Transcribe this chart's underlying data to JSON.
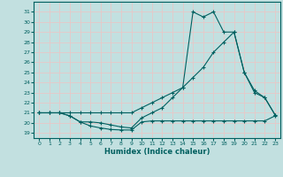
{
  "xlabel": "Humidex (Indice chaleur)",
  "bg_color": "#c2e0e0",
  "grid_color": "#e8c8c8",
  "line_color": "#006060",
  "x_ticks": [
    0,
    1,
    2,
    3,
    4,
    5,
    6,
    7,
    8,
    9,
    10,
    11,
    12,
    13,
    14,
    15,
    16,
    17,
    18,
    19,
    20,
    21,
    22,
    23
  ],
  "y_ticks": [
    19,
    20,
    21,
    22,
    23,
    24,
    25,
    26,
    27,
    28,
    29,
    30,
    31
  ],
  "ylim": [
    18.5,
    32.0
  ],
  "xlim": [
    -0.5,
    23.5
  ],
  "line1_x": [
    0,
    1,
    2,
    3,
    4,
    5,
    6,
    7,
    8,
    9,
    10,
    11,
    12,
    13,
    14,
    15,
    16,
    17,
    18,
    19,
    20,
    21,
    22,
    23
  ],
  "line1_y": [
    21,
    21,
    21,
    20.7,
    20.1,
    19.7,
    19.5,
    19.35,
    19.3,
    19.3,
    20.1,
    20.2,
    20.2,
    20.2,
    20.2,
    20.2,
    20.2,
    20.2,
    20.2,
    20.2,
    20.2,
    20.2,
    20.2,
    20.7
  ],
  "line2_x": [
    0,
    1,
    2,
    3,
    4,
    5,
    6,
    7,
    8,
    9,
    10,
    11,
    12,
    13,
    14,
    15,
    16,
    17,
    18,
    19,
    20,
    21,
    22,
    23
  ],
  "line2_y": [
    21,
    21,
    21,
    21,
    21,
    21,
    21,
    21,
    21,
    21,
    21.5,
    22,
    22.5,
    23,
    23.5,
    24.5,
    25.5,
    27,
    28,
    29,
    25,
    23.2,
    22.5,
    20.8
  ],
  "line3_x": [
    0,
    1,
    2,
    3,
    4,
    5,
    6,
    7,
    8,
    9,
    10,
    11,
    12,
    13,
    14,
    15,
    16,
    17,
    18,
    19,
    20,
    21,
    22,
    23
  ],
  "line3_y": [
    21,
    21,
    21,
    20.7,
    20.1,
    20.1,
    20.0,
    19.8,
    19.6,
    19.5,
    20.5,
    21,
    21.5,
    22.5,
    23.5,
    31,
    30.5,
    31,
    29,
    29,
    25,
    23,
    22.5,
    20.8
  ]
}
